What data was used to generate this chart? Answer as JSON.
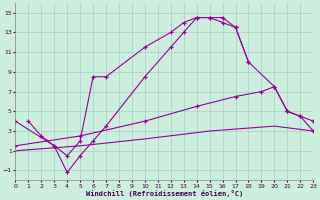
{
  "xlabel": "Windchill (Refroidissement éolien,°C)",
  "bg_color": "#cceedd",
  "line_color": "#990099",
  "xlim": [
    0,
    23
  ],
  "ylim": [
    -2,
    16
  ],
  "xticks": [
    0,
    1,
    2,
    3,
    4,
    5,
    6,
    7,
    8,
    9,
    10,
    11,
    12,
    13,
    14,
    15,
    16,
    17,
    18,
    19,
    20,
    21,
    22,
    23
  ],
  "yticks": [
    -1,
    1,
    3,
    5,
    7,
    9,
    11,
    13,
    15
  ],
  "grid_color": "#aacccc",
  "curve1_x": [
    1,
    2,
    3,
    4,
    5,
    6,
    7,
    10,
    12,
    13,
    14,
    15,
    16,
    17,
    18,
    20,
    21,
    22,
    23
  ],
  "curve1_y": [
    4.0,
    2.5,
    1.5,
    0.5,
    2.0,
    8.5,
    8.5,
    11.5,
    13.0,
    14.0,
    14.5,
    14.5,
    14.0,
    13.5,
    10.0,
    7.5,
    5.0,
    4.5,
    3.0
  ],
  "curve2_x": [
    0,
    3,
    4,
    5,
    6,
    7,
    10,
    12,
    13,
    14,
    15,
    16,
    17,
    18
  ],
  "curve2_y": [
    4.0,
    1.5,
    -1.2,
    0.5,
    2.0,
    3.5,
    8.5,
    11.5,
    13.0,
    14.5,
    14.5,
    14.5,
    13.5,
    10.0
  ],
  "curve3_x": [
    0,
    5,
    10,
    14,
    17,
    19,
    20,
    21,
    22,
    23
  ],
  "curve3_y": [
    1.5,
    2.5,
    4.0,
    5.5,
    6.5,
    7.0,
    7.5,
    5.0,
    4.5,
    4.0
  ],
  "curve4_x": [
    0,
    5,
    10,
    15,
    20,
    23
  ],
  "curve4_y": [
    1.0,
    1.5,
    2.2,
    3.0,
    3.5,
    3.0
  ]
}
